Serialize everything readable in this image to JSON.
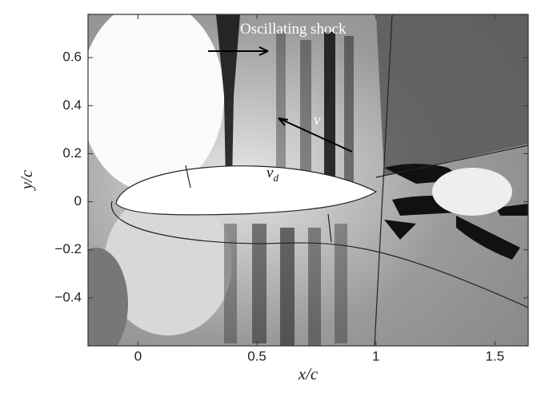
{
  "chart_data": {
    "type": "field",
    "xlabel": "x/c",
    "ylabel": "y/c",
    "xlim": [
      -0.21,
      1.64
    ],
    "ylim": [
      -0.6,
      0.78
    ],
    "xticks": [
      0,
      0.5,
      1,
      1.5
    ],
    "yticks": [
      {
        "value": -0.4,
        "label": "−0.4"
      },
      {
        "value": -0.2,
        "label": "−0.2"
      },
      0,
      0.2,
      0.4,
      0.6
    ],
    "annotations": {
      "shock": "Oscillating shock",
      "v": "v",
      "vd": {
        "main": "v",
        "sub": "d"
      }
    }
  }
}
